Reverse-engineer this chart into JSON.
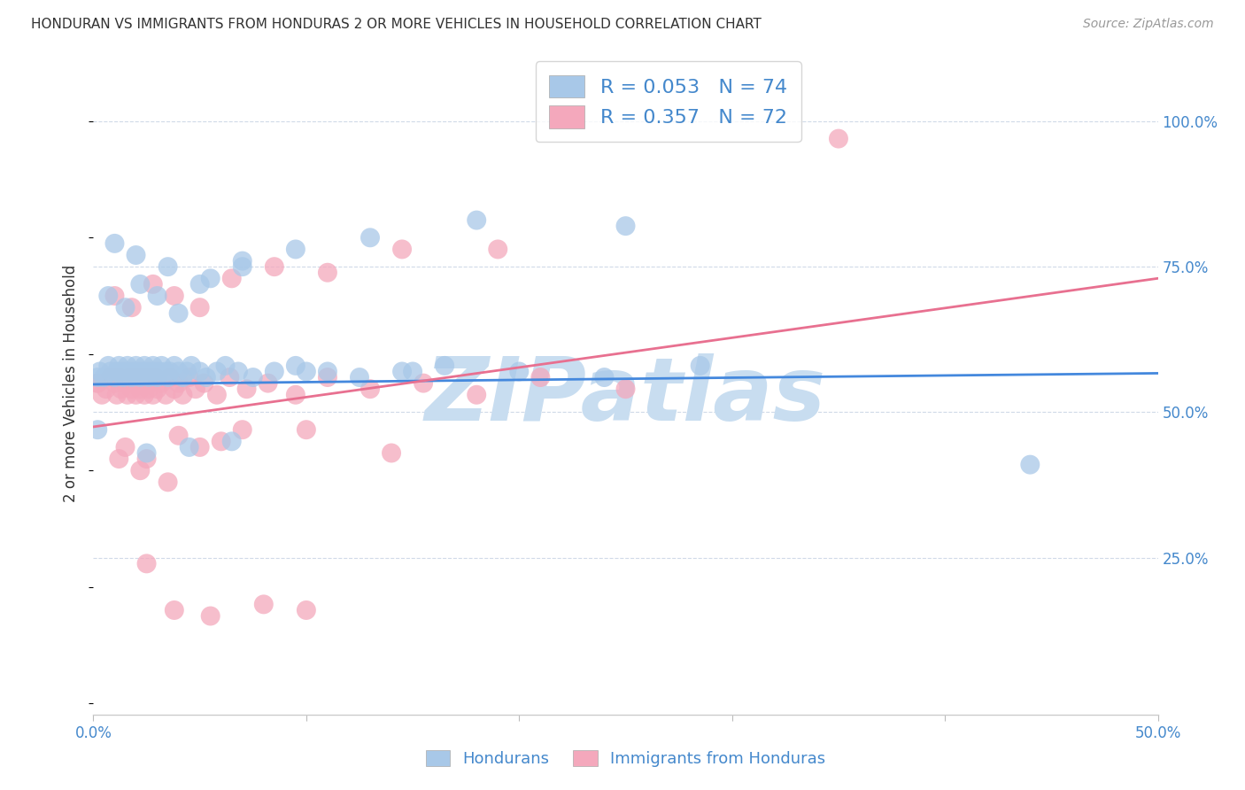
{
  "title": "HONDURAN VS IMMIGRANTS FROM HONDURAS 2 OR MORE VEHICLES IN HOUSEHOLD CORRELATION CHART",
  "source": "Source: ZipAtlas.com",
  "ylabel": "2 or more Vehicles in Household",
  "xlim": [
    0.0,
    0.5
  ],
  "ylim": [
    -0.02,
    1.12
  ],
  "xticks": [
    0.0,
    0.1,
    0.2,
    0.3,
    0.4,
    0.5
  ],
  "xticklabels": [
    "0.0%",
    "",
    "",
    "",
    "",
    "50.0%"
  ],
  "yticks_right": [
    0.0,
    0.25,
    0.5,
    0.75,
    1.0
  ],
  "yticklabels_right": [
    "",
    "25.0%",
    "50.0%",
    "75.0%",
    "100.0%"
  ],
  "blue_R": 0.053,
  "blue_N": 74,
  "pink_R": 0.357,
  "pink_N": 72,
  "blue_color": "#a8c8e8",
  "pink_color": "#f4a8bc",
  "blue_line_color": "#4488dd",
  "pink_line_color": "#e87090",
  "blue_label": "Hondurans",
  "pink_label": "Immigrants from Honduras",
  "watermark": "ZIPatlas",
  "watermark_color": "#c8ddf0",
  "title_color": "#333333",
  "tick_color": "#4488cc",
  "grid_color": "#d0dae8",
  "bg_color": "#ffffff",
  "blue_scatter_x": [
    0.002,
    0.003,
    0.005,
    0.007,
    0.008,
    0.01,
    0.011,
    0.012,
    0.013,
    0.014,
    0.015,
    0.016,
    0.017,
    0.018,
    0.019,
    0.02,
    0.021,
    0.022,
    0.023,
    0.024,
    0.025,
    0.026,
    0.027,
    0.028,
    0.029,
    0.03,
    0.031,
    0.032,
    0.034,
    0.035,
    0.036,
    0.038,
    0.04,
    0.042,
    0.044,
    0.046,
    0.05,
    0.053,
    0.058,
    0.062,
    0.068,
    0.075,
    0.085,
    0.095,
    0.11,
    0.125,
    0.145,
    0.165,
    0.2,
    0.24,
    0.285,
    0.007,
    0.015,
    0.022,
    0.03,
    0.04,
    0.055,
    0.07,
    0.095,
    0.13,
    0.18,
    0.25,
    0.01,
    0.02,
    0.035,
    0.05,
    0.07,
    0.1,
    0.15,
    0.025,
    0.045,
    0.065,
    0.44,
    0.002
  ],
  "blue_scatter_y": [
    0.56,
    0.57,
    0.56,
    0.58,
    0.57,
    0.56,
    0.57,
    0.58,
    0.57,
    0.56,
    0.57,
    0.58,
    0.57,
    0.56,
    0.57,
    0.58,
    0.57,
    0.56,
    0.57,
    0.58,
    0.57,
    0.56,
    0.57,
    0.58,
    0.57,
    0.56,
    0.57,
    0.58,
    0.57,
    0.56,
    0.57,
    0.58,
    0.57,
    0.56,
    0.57,
    0.58,
    0.57,
    0.56,
    0.57,
    0.58,
    0.57,
    0.56,
    0.57,
    0.58,
    0.57,
    0.56,
    0.57,
    0.58,
    0.57,
    0.56,
    0.58,
    0.7,
    0.68,
    0.72,
    0.7,
    0.67,
    0.73,
    0.75,
    0.78,
    0.8,
    0.83,
    0.82,
    0.79,
    0.77,
    0.75,
    0.72,
    0.76,
    0.57,
    0.57,
    0.43,
    0.44,
    0.45,
    0.41,
    0.47
  ],
  "pink_scatter_x": [
    0.002,
    0.004,
    0.006,
    0.008,
    0.01,
    0.011,
    0.012,
    0.013,
    0.015,
    0.016,
    0.017,
    0.018,
    0.019,
    0.02,
    0.021,
    0.022,
    0.023,
    0.024,
    0.025,
    0.026,
    0.027,
    0.028,
    0.029,
    0.03,
    0.032,
    0.034,
    0.036,
    0.038,
    0.04,
    0.042,
    0.045,
    0.048,
    0.052,
    0.058,
    0.064,
    0.072,
    0.082,
    0.095,
    0.11,
    0.13,
    0.155,
    0.18,
    0.21,
    0.25,
    0.01,
    0.018,
    0.028,
    0.038,
    0.05,
    0.065,
    0.085,
    0.11,
    0.145,
    0.19,
    0.012,
    0.022,
    0.035,
    0.05,
    0.07,
    0.1,
    0.14,
    0.35,
    0.015,
    0.025,
    0.04,
    0.06,
    0.025,
    0.038,
    0.055,
    0.08,
    0.1,
    0.002
  ],
  "pink_scatter_y": [
    0.55,
    0.53,
    0.54,
    0.56,
    0.55,
    0.53,
    0.56,
    0.54,
    0.55,
    0.53,
    0.56,
    0.54,
    0.55,
    0.53,
    0.56,
    0.54,
    0.55,
    0.53,
    0.56,
    0.54,
    0.55,
    0.53,
    0.56,
    0.54,
    0.55,
    0.53,
    0.56,
    0.54,
    0.55,
    0.53,
    0.56,
    0.54,
    0.55,
    0.53,
    0.56,
    0.54,
    0.55,
    0.53,
    0.56,
    0.54,
    0.55,
    0.53,
    0.56,
    0.54,
    0.7,
    0.68,
    0.72,
    0.7,
    0.68,
    0.73,
    0.75,
    0.74,
    0.78,
    0.78,
    0.42,
    0.4,
    0.38,
    0.44,
    0.47,
    0.47,
    0.43,
    0.97,
    0.44,
    0.42,
    0.46,
    0.45,
    0.24,
    0.16,
    0.15,
    0.17,
    0.16,
    0.55
  ],
  "blue_line_x": [
    0.0,
    0.5
  ],
  "blue_line_y": [
    0.548,
    0.567
  ],
  "pink_line_x": [
    0.0,
    0.5
  ],
  "pink_line_y": [
    0.475,
    0.73
  ]
}
